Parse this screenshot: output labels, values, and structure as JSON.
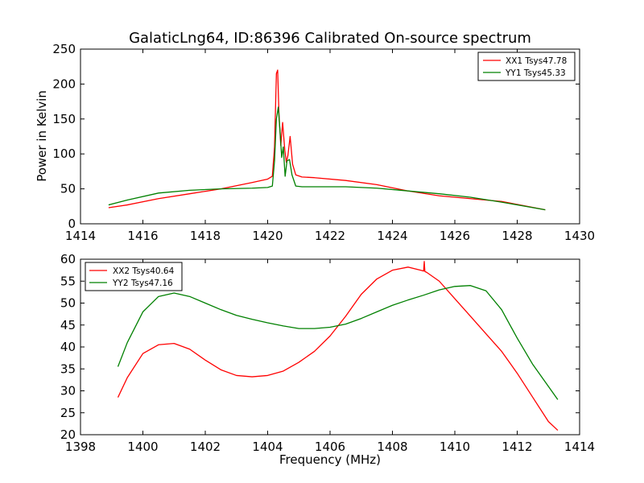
{
  "chart_data": [
    {
      "type": "line",
      "title": "GalaticLng64, ID:86396 Calibrated On-source spectrum",
      "xlabel": "",
      "ylabel": "Power in Kelvin",
      "xlim": [
        1414,
        1430
      ],
      "ylim": [
        0,
        250
      ],
      "xticks": [
        1414,
        1416,
        1418,
        1420,
        1422,
        1424,
        1426,
        1428,
        1430
      ],
      "yticks": [
        0,
        50,
        100,
        150,
        200,
        250
      ],
      "grid": false,
      "legend": "top-right",
      "series": [
        {
          "name": "XX1 Tsys47.78",
          "color": "#ff0000",
          "x": [
            1414.9,
            1415.5,
            1416.5,
            1417.5,
            1418.5,
            1419.5,
            1420.0,
            1420.15,
            1420.22,
            1420.28,
            1420.32,
            1420.36,
            1420.42,
            1420.48,
            1420.55,
            1420.6,
            1420.65,
            1420.72,
            1420.8,
            1420.9,
            1421.1,
            1421.5,
            1422.5,
            1423.5,
            1424.5,
            1425.5,
            1426.5,
            1427.5,
            1428.9
          ],
          "y": [
            23,
            27,
            36,
            43,
            50,
            59,
            64,
            68,
            110,
            215,
            220,
            160,
            112,
            145,
            105,
            88,
            98,
            125,
            85,
            70,
            67,
            66,
            62,
            56,
            47,
            40,
            36,
            32,
            20
          ]
        },
        {
          "name": "YY1 Tsys45.33",
          "color": "#008000",
          "x": [
            1414.9,
            1415.5,
            1416.5,
            1417.5,
            1418.5,
            1419.5,
            1420.0,
            1420.15,
            1420.22,
            1420.28,
            1420.34,
            1420.4,
            1420.45,
            1420.5,
            1420.56,
            1420.62,
            1420.7,
            1420.78,
            1420.9,
            1421.1,
            1422.5,
            1423.5,
            1424.5,
            1425.5,
            1426.5,
            1427.5,
            1428.9
          ],
          "y": [
            27,
            34,
            44,
            48,
            50,
            51,
            52,
            54,
            90,
            150,
            167,
            130,
            95,
            110,
            68,
            90,
            92,
            70,
            54,
            53,
            53,
            51,
            47,
            43,
            38,
            31,
            20
          ]
        }
      ]
    },
    {
      "type": "line",
      "title": "",
      "xlabel": "Frequency (MHz)",
      "ylabel": "",
      "xlim": [
        1398,
        1414
      ],
      "ylim": [
        20,
        60
      ],
      "xticks": [
        1398,
        1400,
        1402,
        1404,
        1406,
        1408,
        1410,
        1412,
        1414
      ],
      "yticks": [
        20,
        25,
        30,
        35,
        40,
        45,
        50,
        55,
        60
      ],
      "grid": false,
      "legend": "top-left",
      "series": [
        {
          "name": "XX2 Tsys40.64",
          "color": "#ff0000",
          "x": [
            1399.2,
            1399.5,
            1400.0,
            1400.5,
            1401.0,
            1401.5,
            1402.0,
            1402.5,
            1403.0,
            1403.5,
            1404.0,
            1404.5,
            1405.0,
            1405.5,
            1406.0,
            1406.5,
            1407.0,
            1407.5,
            1408.0,
            1408.5,
            1408.9,
            1409.0,
            1409.02,
            1409.04,
            1409.1,
            1409.5,
            1410.0,
            1410.5,
            1411.0,
            1411.5,
            1412.0,
            1412.5,
            1413.0,
            1413.3
          ],
          "y": [
            28.5,
            33,
            38.5,
            40.5,
            40.8,
            39.5,
            37,
            34.8,
            33.5,
            33.2,
            33.5,
            34.5,
            36.5,
            39,
            42.5,
            47,
            52,
            55.5,
            57.5,
            58.2,
            57.5,
            57.3,
            59.5,
            57.2,
            57.0,
            55,
            51,
            47,
            43,
            39,
            34,
            28.5,
            23,
            21
          ]
        },
        {
          "name": "YY2 Tsys47.16",
          "color": "#008000",
          "x": [
            1399.2,
            1399.5,
            1400.0,
            1400.5,
            1401.0,
            1401.5,
            1402.0,
            1402.5,
            1403.0,
            1403.5,
            1404.0,
            1404.5,
            1405.0,
            1405.5,
            1406.0,
            1406.5,
            1407.0,
            1407.5,
            1408.0,
            1408.5,
            1409.0,
            1409.5,
            1410.0,
            1410.5,
            1411.0,
            1411.5,
            1412.0,
            1412.5,
            1413.0,
            1413.3
          ],
          "y": [
            35.5,
            41,
            48,
            51.5,
            52.3,
            51.5,
            50,
            48.5,
            47.2,
            46.3,
            45.5,
            44.8,
            44.2,
            44.2,
            44.5,
            45.2,
            46.5,
            48,
            49.5,
            50.7,
            51.8,
            53,
            53.8,
            54,
            52.8,
            48.5,
            42,
            36,
            31,
            28
          ]
        }
      ]
    }
  ]
}
